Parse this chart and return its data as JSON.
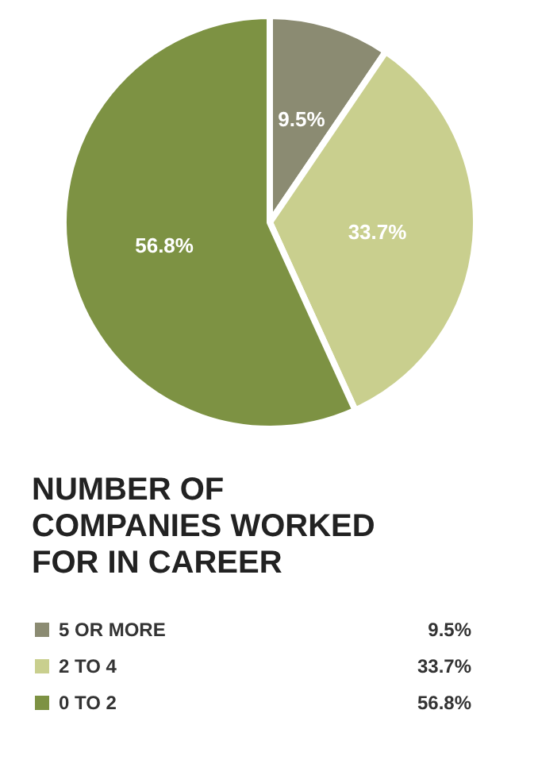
{
  "chart_data": {
    "type": "pie",
    "title": "NUMBER OF COMPANIES WORKED FOR IN CAREER",
    "categories": [
      "5 OR MORE",
      "2 TO 4",
      "0 TO 2"
    ],
    "values": [
      9.5,
      33.7,
      56.8
    ],
    "value_labels": [
      "9.5%",
      "33.7%",
      "56.8%"
    ],
    "colors": [
      "#8b8b72",
      "#c9cf8e",
      "#7d9243"
    ],
    "legend": "bottom"
  }
}
